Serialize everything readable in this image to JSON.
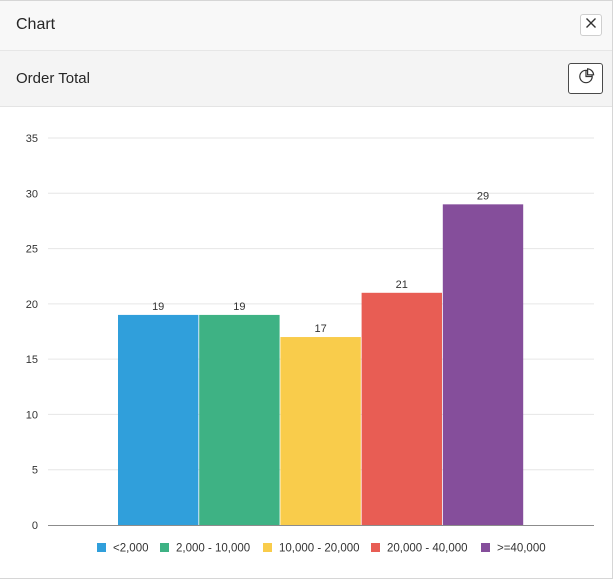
{
  "dialog": {
    "title": "Chart",
    "subtitle": "Order Total"
  },
  "icons": {
    "close": "close-icon",
    "chart_type": "pie-chart-icon"
  },
  "chart_data": {
    "type": "bar",
    "title": "",
    "xlabel": "",
    "ylabel": "",
    "ylim": [
      0,
      35
    ],
    "yticks": [
      0,
      5,
      10,
      15,
      20,
      25,
      30,
      35
    ],
    "grid": true,
    "legend_position": "bottom",
    "categories": [
      "<2,000",
      "2,000 - 10,000",
      "10,000 - 20,000",
      "20,000 - 40,000",
      ">=40,000"
    ],
    "values": [
      19,
      19,
      17,
      21,
      29
    ],
    "colors": [
      "#309fdb",
      "#3eb284",
      "#f9cc4b",
      "#e85d54",
      "#854e9b"
    ]
  }
}
